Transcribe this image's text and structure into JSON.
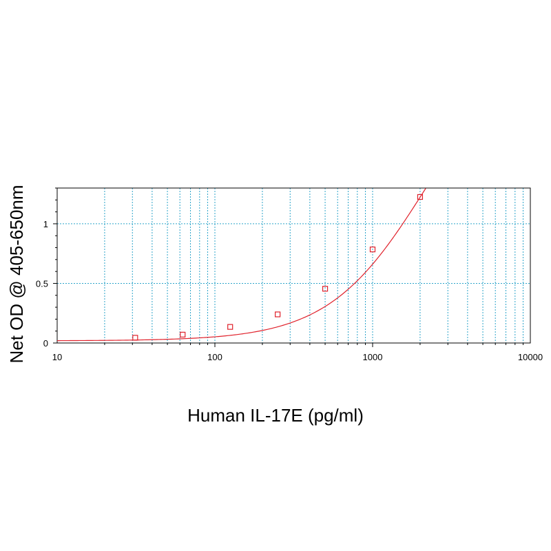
{
  "chart_data": {
    "type": "scatter",
    "title": "",
    "xlabel": "Human IL-17E (pg/ml)",
    "ylabel": "Net OD @ 405-650nm",
    "xscale": "log",
    "xlim": [
      10,
      10000
    ],
    "ylim": [
      0,
      1.3
    ],
    "x_ticks": [
      10,
      100,
      1000,
      10000
    ],
    "x_tick_labels": [
      "10",
      "100",
      "1000",
      "10000"
    ],
    "y_ticks": [
      0,
      0.5,
      1
    ],
    "y_tick_labels": [
      "0",
      "0.5",
      "1"
    ],
    "grid": true,
    "legend": "none",
    "series": [
      {
        "x": [
          31.25,
          62.5,
          125,
          250,
          500,
          1000,
          2000
        ],
        "y": [
          0.044,
          0.07,
          0.135,
          0.24,
          0.455,
          0.785,
          1.225
        ]
      }
    ],
    "fit_curve": {
      "type": "4PL",
      "a": 0.0183,
      "b": 1.4,
      "c": 2200,
      "d": 2.6,
      "x_range": [
        10,
        2230
      ]
    },
    "colors": {
      "marker": "#e0202a",
      "curve": "#e0202a",
      "grid": "#2aa3c9",
      "axis": "#000000"
    }
  }
}
